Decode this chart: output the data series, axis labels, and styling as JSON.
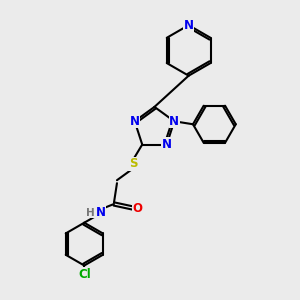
{
  "bg_color": "#ebebeb",
  "bond_color": "#000000",
  "N_color": "#0000ee",
  "O_color": "#ee0000",
  "S_color": "#bbbb00",
  "Cl_color": "#00aa00",
  "H_color": "#777777",
  "line_width": 1.5,
  "font_size": 8.5,
  "fig_w": 3.0,
  "fig_h": 3.0,
  "dpi": 100,
  "xlim": [
    0,
    10
  ],
  "ylim": [
    0,
    10
  ]
}
